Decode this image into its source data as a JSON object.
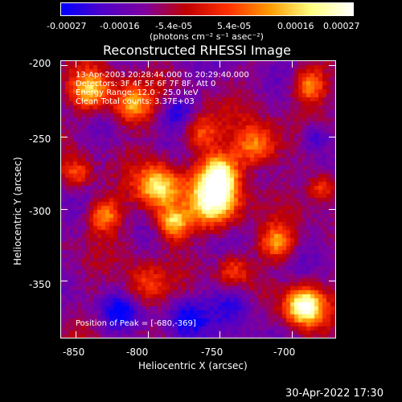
{
  "colorbar": {
    "ticks": [
      "-0.00027",
      "-0.00016",
      "-5.4e-05",
      "5.4e-05",
      "0.00016",
      "0.00027"
    ],
    "unit_label": "(photons cm⁻² s⁻¹ asec⁻²)",
    "colors": [
      "#0000ff",
      "#5000c8",
      "#7f00a0",
      "#c00000",
      "#ff3000",
      "#ff9a00",
      "#ffff80",
      "#ffffff"
    ]
  },
  "plot": {
    "title": "Reconstructed RHESSI Image",
    "info_lines": [
      "13-Apr-2003 20:28:44.000 to 20:29:40.000",
      "Detectors: 3F 4F 5F 6F 7F 8F, Att 0",
      "Energy Range: 12.0 - 25.0 keV",
      "Clean    Total counts: 3.37E+03"
    ],
    "peak_label": "Position of Peak = [-680,-369]",
    "x_axis": {
      "label": "Heliocentric X (arcsec)",
      "range": [
        -860,
        -670
      ],
      "ticks": [
        "-850",
        "-800",
        "-750",
        "-700"
      ],
      "tick_values": [
        -850,
        -800,
        -750,
        -700
      ]
    },
    "y_axis": {
      "label": "Heliocentric Y (arcsec)",
      "range": [
        -390,
        -197
      ],
      "ticks": [
        "-200",
        "-250",
        "-300",
        "-350"
      ],
      "tick_values": [
        -200,
        -250,
        -300,
        -350
      ]
    }
  },
  "footer": {
    "timestamp": "30-Apr-2022 17:30"
  }
}
